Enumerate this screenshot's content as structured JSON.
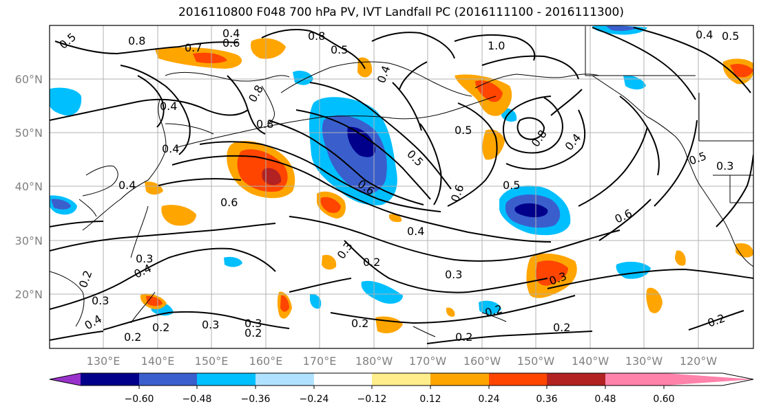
{
  "figure": {
    "title": "2016110800 F048 700 hPa PV, IVT Landfall PC (2016111100 - 2016111300)"
  },
  "map": {
    "lat_labels": [
      "60°N",
      "50°N",
      "40°N",
      "30°N",
      "20°N"
    ],
    "lon_labels": [
      "130°E",
      "140°E",
      "150°E",
      "160°E",
      "170°E",
      "180°W",
      "170°W",
      "160°W",
      "150°W",
      "140°W",
      "130°W",
      "120°W"
    ],
    "contour_labels": [
      {
        "text": "0.5"
      },
      {
        "text": "0.8"
      },
      {
        "text": "0.4"
      },
      {
        "text": "0.6"
      },
      {
        "text": "0.7"
      },
      {
        "text": "0.8"
      },
      {
        "text": "0.5"
      },
      {
        "text": "1.0"
      },
      {
        "text": "0.5"
      },
      {
        "text": "0.4"
      },
      {
        "text": "0.4"
      },
      {
        "text": "0.8"
      },
      {
        "text": "0.4"
      },
      {
        "text": "0.4"
      },
      {
        "text": "0.8"
      },
      {
        "text": "0.4"
      },
      {
        "text": "0.3"
      },
      {
        "text": "0.6"
      },
      {
        "text": "0.5"
      },
      {
        "text": "0.5"
      },
      {
        "text": "0.8"
      },
      {
        "text": "0.4"
      },
      {
        "text": "0.5"
      },
      {
        "text": "0.6"
      },
      {
        "text": "0.5"
      },
      {
        "text": "0.6"
      },
      {
        "text": "0.6"
      },
      {
        "text": "0.4"
      },
      {
        "text": "0.3"
      },
      {
        "text": "0.3"
      },
      {
        "text": "0.2"
      },
      {
        "text": "0.3"
      },
      {
        "text": "0.4"
      },
      {
        "text": "0.2"
      },
      {
        "text": "0.3"
      },
      {
        "text": "0.3"
      },
      {
        "text": "0.2"
      },
      {
        "text": "0.2"
      },
      {
        "text": "0.3"
      },
      {
        "text": "0.2"
      },
      {
        "text": "0.2"
      },
      {
        "text": "0.2"
      },
      {
        "text": "0.2"
      },
      {
        "text": "0.2"
      },
      {
        "text": "0.4"
      },
      {
        "text": "0.3"
      },
      {
        "text": "0.2"
      }
    ]
  },
  "colorbar": {
    "ticks": [
      "−0.60",
      "−0.48",
      "−0.36",
      "−0.24",
      "−0.12",
      "0.12",
      "0.24",
      "0.36",
      "0.48",
      "0.60"
    ],
    "colors": [
      "#9932cc",
      "#00008b",
      "#3a5fcd",
      "#00bfff",
      "#b0e2ff",
      "#ffffff",
      "#ffec8b",
      "#ffa500",
      "#ff4500",
      "#b22222",
      "#ff82ab"
    ]
  },
  "colors": {
    "strong_negative": "#00008b",
    "negative": "#3a5fcd",
    "weak_negative": "#00bfff",
    "positive": "#ffa500",
    "strong_positive": "#ff4500",
    "max_positive": "#b22222"
  }
}
